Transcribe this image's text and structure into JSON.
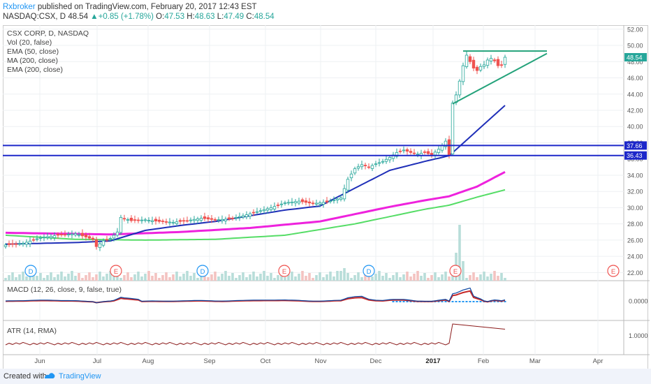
{
  "header": {
    "author": "Rxbroker",
    "published_text": "published on TradingView.com, February 20, 2017 12:43 EST",
    "symbol": "NASDAQ:CSX, D",
    "last": "48.54",
    "change_arrow": "▲",
    "change": "+0.85 (+1.78%)",
    "o_label": "O:",
    "o_value": "47.53",
    "h_label": "H:",
    "h_value": "48.63",
    "l_label": "L:",
    "l_value": "47.49",
    "c_label": "C:",
    "c_value": "48.54"
  },
  "legend": {
    "title": "CSX CORP, D, NASDAQ",
    "vol": "Vol (20, false)",
    "ema50": "EMA (50, close)",
    "ma200": "MA (200, close)",
    "ema200": "EMA (200, close)"
  },
  "macd_label": "MACD (12, 26, close, 9, false, true)",
  "atr_label": "ATR (14, RMA)",
  "macd_tick": "0.0000",
  "atr_tick": "1.0000",
  "footer": {
    "created": "Created with",
    "brand": "TradingView"
  },
  "colors": {
    "up": "#26a69a",
    "down": "#ef5350",
    "ema50": "#1f2fb8",
    "ma200": "#ee22dd",
    "ema200": "#55dd66",
    "hline": "#1c27c9",
    "triangle": "#23a27a"
  },
  "chart_data": {
    "type": "candlestick",
    "y_ticks": [
      22,
      24,
      26,
      28,
      30,
      32,
      34,
      36,
      38,
      40,
      42,
      44,
      46,
      48,
      50,
      52
    ],
    "ylim": [
      21,
      52.5
    ],
    "x_labels": [
      "Jun",
      "Jul",
      "Aug",
      "Sep",
      "Oct",
      "Nov",
      "Dec",
      "2017",
      "Feb",
      "Mar",
      "Apr"
    ],
    "last_price": 48.54,
    "horizontal_levels": [
      37.66,
      36.43
    ],
    "events_dividend": [
      "D",
      "D",
      "D"
    ],
    "events_earnings": [
      "E",
      "E",
      "E",
      "E"
    ],
    "price_path": [
      [
        0,
        25.4
      ],
      [
        5,
        25.6
      ],
      [
        10,
        26.3
      ],
      [
        15,
        26.6
      ],
      [
        20,
        26.8
      ],
      [
        25,
        26.1
      ],
      [
        26,
        25.2
      ],
      [
        28,
        25.9
      ],
      [
        30,
        26.2
      ],
      [
        32,
        27.0
      ],
      [
        33,
        28.8
      ],
      [
        36,
        28.4
      ],
      [
        40,
        28.5
      ],
      [
        44,
        28.3
      ],
      [
        48,
        28.2
      ],
      [
        52,
        28.4
      ],
      [
        56,
        28.7
      ],
      [
        60,
        28.5
      ],
      [
        64,
        28.6
      ],
      [
        68,
        29.0
      ],
      [
        72,
        29.5
      ],
      [
        76,
        30.0
      ],
      [
        80,
        30.6
      ],
      [
        84,
        30.8
      ],
      [
        88,
        30.5
      ],
      [
        92,
        30.7
      ],
      [
        96,
        31.2
      ],
      [
        98,
        33.5
      ],
      [
        100,
        34.8
      ],
      [
        102,
        35.3
      ],
      [
        104,
        35.0
      ],
      [
        106,
        35.4
      ],
      [
        108,
        35.7
      ],
      [
        110,
        36.2
      ],
      [
        112,
        36.8
      ],
      [
        114,
        37.1
      ],
      [
        116,
        36.8
      ],
      [
        118,
        36.6
      ],
      [
        120,
        36.8
      ],
      [
        122,
        36.5
      ],
      [
        124,
        37.2
      ],
      [
        126,
        38.2
      ],
      [
        127,
        36.5
      ],
      [
        128,
        42.9
      ],
      [
        129,
        43.9
      ],
      [
        130,
        45.6
      ],
      [
        131,
        47.5
      ],
      [
        132,
        48.8
      ],
      [
        133,
        48.0
      ],
      [
        134,
        47.2
      ],
      [
        135,
        46.9
      ],
      [
        136,
        47.4
      ],
      [
        137,
        47.6
      ],
      [
        138,
        48.2
      ],
      [
        139,
        48.4
      ],
      [
        140,
        48.1
      ],
      [
        141,
        47.5
      ],
      [
        142,
        47.6
      ],
      [
        143,
        48.54
      ]
    ],
    "ema50": [
      [
        0,
        25.5
      ],
      [
        20,
        25.7
      ],
      [
        30,
        25.9
      ],
      [
        40,
        27.2
      ],
      [
        50,
        27.8
      ],
      [
        60,
        28.3
      ],
      [
        70,
        29.0
      ],
      [
        80,
        29.7
      ],
      [
        90,
        30.2
      ],
      [
        100,
        32.4
      ],
      [
        110,
        34.6
      ],
      [
        120,
        35.7
      ],
      [
        127,
        36.4
      ],
      [
        135,
        39.5
      ],
      [
        143,
        42.6
      ]
    ],
    "ma200": [
      [
        0,
        26.9
      ],
      [
        30,
        26.7
      ],
      [
        50,
        27.0
      ],
      [
        70,
        27.5
      ],
      [
        90,
        28.3
      ],
      [
        100,
        29.2
      ],
      [
        110,
        30.1
      ],
      [
        120,
        30.9
      ],
      [
        127,
        31.4
      ],
      [
        135,
        32.6
      ],
      [
        143,
        34.4
      ]
    ],
    "ema200": [
      [
        0,
        26.6
      ],
      [
        20,
        26.1
      ],
      [
        40,
        26.0
      ],
      [
        60,
        26.1
      ],
      [
        80,
        26.6
      ],
      [
        90,
        27.3
      ],
      [
        100,
        28.0
      ],
      [
        110,
        28.9
      ],
      [
        120,
        29.8
      ],
      [
        127,
        30.3
      ],
      [
        135,
        31.3
      ],
      [
        143,
        32.2
      ]
    ],
    "triangle_top": [
      [
        131,
        49.3
      ],
      [
        155,
        49.3
      ]
    ],
    "triangle_bottom": [
      [
        128,
        42.8
      ],
      [
        155,
        49.0
      ]
    ]
  }
}
